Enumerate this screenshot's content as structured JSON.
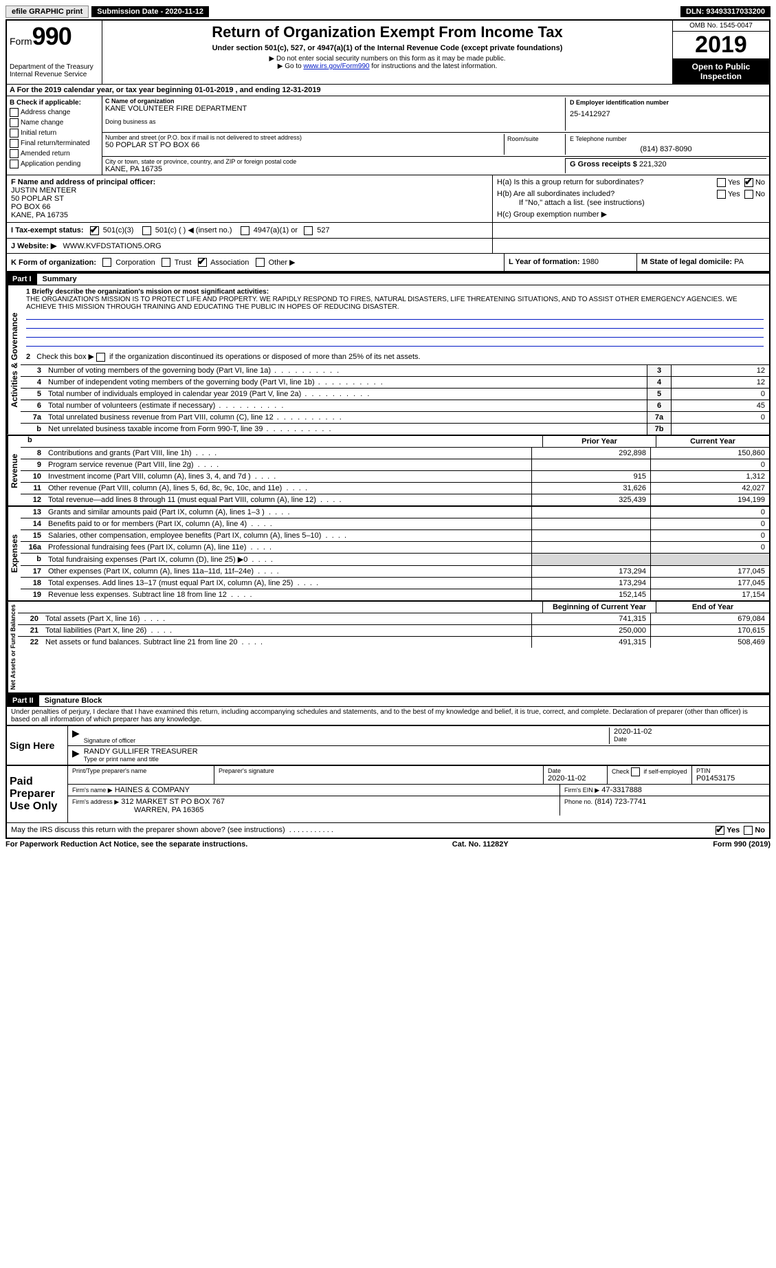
{
  "topbar": {
    "efile": "efile GRAPHIC print",
    "submission": "Submission Date - 2020-11-12",
    "dln": "DLN: 93493317033200"
  },
  "header": {
    "form_word": "Form",
    "form_num": "990",
    "dept": "Department of the Treasury\nInternal Revenue Service",
    "title": "Return of Organization Exempt From Income Tax",
    "subtitle": "Under section 501(c), 527, or 4947(a)(1) of the Internal Revenue Code (except private foundations)",
    "note1": "▶ Do not enter social security numbers on this form as it may be made public.",
    "note2_pre": "▶ Go to ",
    "note2_link": "www.irs.gov/Form990",
    "note2_post": " for instructions and the latest information.",
    "omb": "OMB No. 1545-0047",
    "year": "2019",
    "inspect": "Open to Public Inspection"
  },
  "section_a": "A For the 2019 calendar year, or tax year beginning 01-01-2019    , and ending 12-31-2019",
  "b": {
    "header": "B Check if applicable:",
    "items": [
      "Address change",
      "Name change",
      "Initial return",
      "Final return/terminated",
      "Amended return",
      "Application pending"
    ]
  },
  "c": {
    "label": "C Name of organization",
    "name": "KANE VOLUNTEER FIRE DEPARTMENT",
    "dba_label": "Doing business as",
    "addr_label": "Number and street (or P.O. box if mail is not delivered to street address)",
    "room_label": "Room/suite",
    "addr": "50 POPLAR ST PO BOX 66",
    "city_label": "City or town, state or province, country, and ZIP or foreign postal code",
    "city": "KANE, PA  16735"
  },
  "d": {
    "label": "D Employer identification number",
    "value": "25-1412927"
  },
  "e": {
    "label": "E Telephone number",
    "value": "(814) 837-8090"
  },
  "g": {
    "label": "G Gross receipts $",
    "value": "221,320"
  },
  "f": {
    "label": "F  Name and address of principal officer:",
    "name": "JUSTIN MENTEER",
    "l1": "50 POPLAR ST",
    "l2": "PO BOX 66",
    "l3": "KANE, PA  16735"
  },
  "h": {
    "a": "H(a)  Is this a group return for subordinates?",
    "b": "H(b)  Are all subordinates included?",
    "b_note": "If \"No,\" attach a list. (see instructions)",
    "c": "H(c)  Group exemption number ▶",
    "yes": "Yes",
    "no": "No"
  },
  "i": {
    "label": "I    Tax-exempt status:",
    "o1": "501(c)(3)",
    "o2": "501(c) (  ) ◀ (insert no.)",
    "o3": "4947(a)(1) or",
    "o4": "527"
  },
  "j": {
    "label": "J   Website: ▶",
    "value": "WWW.KVFDSTATION5.ORG"
  },
  "k": {
    "label": "K Form of organization:",
    "o1": "Corporation",
    "o2": "Trust",
    "o3": "Association",
    "o4": "Other ▶"
  },
  "l": {
    "label": "L Year of formation:",
    "value": "1980"
  },
  "m": {
    "label": "M State of legal domicile:",
    "value": "PA"
  },
  "part1": {
    "hdr": "Part I",
    "title": "Summary",
    "q1": "1   Briefly describe the organization's mission or most significant activities:",
    "mission": "THE ORGANIZATION'S MISSION IS TO PROTECT LIFE AND PROPERTY. WE RAPIDLY RESPOND TO FIRES, NATURAL DISASTERS, LIFE THREATENING SITUATIONS, AND TO ASSIST OTHER EMERGENCY AGENCIES. WE ACHIEVE THIS MISSION THROUGH TRAINING AND EDUCATING THE PUBLIC IN HOPES OF REDUCING DISASTER.",
    "q2": "2   Check this box ▶       if the organization discontinued its operations or disposed of more than 25% of its net assets.",
    "rows_ag": [
      {
        "n": "3",
        "d": "Number of voting members of the governing body (Part VI, line 1a)",
        "box": "3",
        "v": "12"
      },
      {
        "n": "4",
        "d": "Number of independent voting members of the governing body (Part VI, line 1b)",
        "box": "4",
        "v": "12"
      },
      {
        "n": "5",
        "d": "Total number of individuals employed in calendar year 2019 (Part V, line 2a)",
        "box": "5",
        "v": "0"
      },
      {
        "n": "6",
        "d": "Total number of volunteers (estimate if necessary)",
        "box": "6",
        "v": "45"
      },
      {
        "n": "7a",
        "d": "Total unrelated business revenue from Part VIII, column (C), line 12",
        "box": "7a",
        "v": "0"
      },
      {
        "n": "b",
        "d": "Net unrelated business taxable income from Form 990-T, line 39",
        "box": "7b",
        "v": ""
      }
    ],
    "col_hdr": {
      "prior": "Prior Year",
      "current": "Current Year"
    },
    "vert_labels": {
      "ag": "Activities & Governance",
      "rev": "Revenue",
      "exp": "Expenses",
      "na": "Net Assets or Fund Balances"
    },
    "revenue": [
      {
        "n": "8",
        "d": "Contributions and grants (Part VIII, line 1h)",
        "p": "292,898",
        "c": "150,860"
      },
      {
        "n": "9",
        "d": "Program service revenue (Part VIII, line 2g)",
        "p": "",
        "c": "0"
      },
      {
        "n": "10",
        "d": "Investment income (Part VIII, column (A), lines 3, 4, and 7d )",
        "p": "915",
        "c": "1,312"
      },
      {
        "n": "11",
        "d": "Other revenue (Part VIII, column (A), lines 5, 6d, 8c, 9c, 10c, and 11e)",
        "p": "31,626",
        "c": "42,027"
      },
      {
        "n": "12",
        "d": "Total revenue—add lines 8 through 11 (must equal Part VIII, column (A), line 12)",
        "p": "325,439",
        "c": "194,199"
      }
    ],
    "expenses": [
      {
        "n": "13",
        "d": "Grants and similar amounts paid (Part IX, column (A), lines 1–3 )",
        "p": "",
        "c": "0"
      },
      {
        "n": "14",
        "d": "Benefits paid to or for members (Part IX, column (A), line 4)",
        "p": "",
        "c": "0"
      },
      {
        "n": "15",
        "d": "Salaries, other compensation, employee benefits (Part IX, column (A), lines 5–10)",
        "p": "",
        "c": "0"
      },
      {
        "n": "16a",
        "d": "Professional fundraising fees (Part IX, column (A), line 11e)",
        "p": "",
        "c": "0"
      },
      {
        "n": "b",
        "d": "Total fundraising expenses (Part IX, column (D), line 25) ▶0",
        "p": "GREY",
        "c": "GREY"
      },
      {
        "n": "17",
        "d": "Other expenses (Part IX, column (A), lines 11a–11d, 11f–24e)",
        "p": "173,294",
        "c": "177,045"
      },
      {
        "n": "18",
        "d": "Total expenses. Add lines 13–17 (must equal Part IX, column (A), line 25)",
        "p": "173,294",
        "c": "177,045"
      },
      {
        "n": "19",
        "d": "Revenue less expenses. Subtract line 18 from line 12",
        "p": "152,145",
        "c": "17,154"
      }
    ],
    "na_hdr": {
      "begin": "Beginning of Current Year",
      "end": "End of Year"
    },
    "netassets": [
      {
        "n": "20",
        "d": "Total assets (Part X, line 16)",
        "p": "741,315",
        "c": "679,084"
      },
      {
        "n": "21",
        "d": "Total liabilities (Part X, line 26)",
        "p": "250,000",
        "c": "170,615"
      },
      {
        "n": "22",
        "d": "Net assets or fund balances. Subtract line 21 from line 20",
        "p": "491,315",
        "c": "508,469"
      }
    ]
  },
  "part2": {
    "hdr": "Part II",
    "title": "Signature Block",
    "decl": "Under penalties of perjury, I declare that I have examined this return, including accompanying schedules and statements, and to the best of my knowledge and belief, it is true, correct, and complete. Declaration of preparer (other than officer) is based on all information of which preparer has any knowledge.",
    "sign_here": "Sign Here",
    "sig_label": "Signature of officer",
    "date_label": "Date",
    "sig_date": "2020-11-02",
    "officer": "RANDY GULLIFER  TREASURER",
    "officer_label": "Type or print name and title",
    "paid": "Paid Preparer Use Only",
    "p_name_label": "Print/Type preparer's name",
    "p_sig_label": "Preparer's signature",
    "p_date_label": "Date",
    "p_date": "2020-11-02",
    "p_check": "Check        if self-employed",
    "ptin_label": "PTIN",
    "ptin": "P01453175",
    "firm_name_label": "Firm's name    ▶",
    "firm_name": "HAINES & COMPANY",
    "firm_ein_label": "Firm's EIN ▶",
    "firm_ein": "47-3317888",
    "firm_addr_label": "Firm's address ▶",
    "firm_addr": "312 MARKET ST PO BOX 767",
    "firm_city": "WARREN, PA  16365",
    "phone_label": "Phone no.",
    "phone": "(814) 723-7741",
    "discuss": "May the IRS discuss this return with the preparer shown above? (see instructions)"
  },
  "footer": {
    "left": "For Paperwork Reduction Act Notice, see the separate instructions.",
    "mid": "Cat. No. 11282Y",
    "right_a": "Form ",
    "right_b": "990",
    "right_c": " (2019)"
  }
}
